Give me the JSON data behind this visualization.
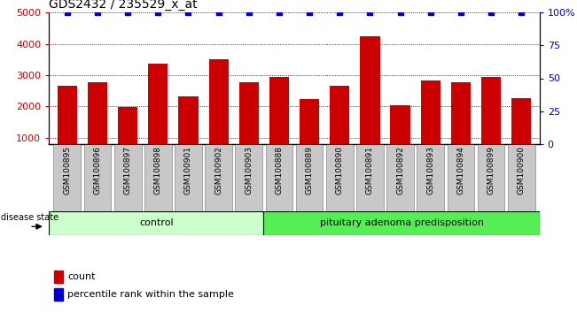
{
  "title": "GDS2432 / 235529_x_at",
  "samples": [
    "GSM100895",
    "GSM100896",
    "GSM100897",
    "GSM100898",
    "GSM100901",
    "GSM100902",
    "GSM100903",
    "GSM100888",
    "GSM100889",
    "GSM100890",
    "GSM100891",
    "GSM100892",
    "GSM100893",
    "GSM100894",
    "GSM100899",
    "GSM100900"
  ],
  "counts": [
    2650,
    2780,
    1980,
    3370,
    2320,
    3520,
    2760,
    2950,
    2230,
    2660,
    4230,
    2030,
    2820,
    2770,
    2950,
    2260
  ],
  "percentiles": [
    100,
    100,
    100,
    100,
    100,
    100,
    100,
    100,
    100,
    100,
    100,
    100,
    100,
    100,
    100,
    100
  ],
  "bar_color": "#cc0000",
  "percentile_color": "#0000cc",
  "ylim_left": [
    800,
    5000
  ],
  "ylim_right": [
    0,
    100
  ],
  "yticks_left": [
    1000,
    2000,
    3000,
    4000,
    5000
  ],
  "yticks_right": [
    0,
    25,
    50,
    75,
    100
  ],
  "ytick_labels_right": [
    "0",
    "25",
    "50",
    "75",
    "100%"
  ],
  "groups": [
    {
      "label": "control",
      "start": 0,
      "end": 7,
      "color": "#ccffcc"
    },
    {
      "label": "pituitary adenoma predisposition",
      "start": 7,
      "end": 16,
      "color": "#55ee55"
    }
  ],
  "disease_state_label": "disease state",
  "legend_count_label": "count",
  "legend_percentile_label": "percentile rank within the sample",
  "title_fontsize": 10,
  "axis_label_color_left": "#cc0000",
  "axis_label_color_right": "#0000cc",
  "background_color": "#ffffff",
  "tick_label_bg": "#c8c8c8",
  "tick_label_edge": "#888888"
}
